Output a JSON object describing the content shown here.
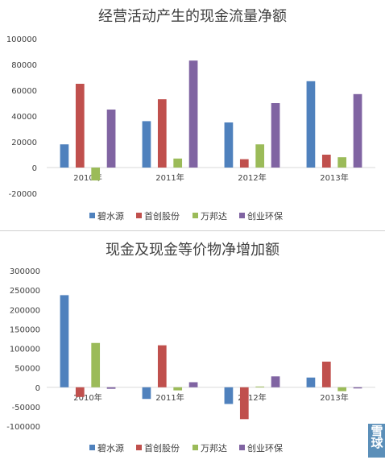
{
  "chart_data": [
    {
      "type": "bar",
      "title": "经营活动产生的现金流量净额",
      "categories": [
        "2010年",
        "2011年",
        "2012年",
        "2013年"
      ],
      "ylim": [
        -20000,
        100000
      ],
      "yticks": [
        -20000,
        0,
        20000,
        40000,
        60000,
        80000,
        100000
      ],
      "grid": false,
      "legend_position": "bottom",
      "series": [
        {
          "name": "碧水源",
          "color": "#4f81bd",
          "values": [
            18000,
            36000,
            35000,
            67000
          ]
        },
        {
          "name": "首创股份",
          "color": "#c0504d",
          "values": [
            65000,
            53000,
            6500,
            10000
          ]
        },
        {
          "name": "万邦达",
          "color": "#9bbb59",
          "values": [
            -10000,
            7000,
            18000,
            8000
          ]
        },
        {
          "name": "创业环保",
          "color": "#8064a2",
          "values": [
            45000,
            83000,
            50000,
            57000
          ]
        }
      ]
    },
    {
      "type": "bar",
      "title": "现金及现金等价物净增加额",
      "categories": [
        "2010年",
        "2011年",
        "2012年",
        "2013年"
      ],
      "ylim": [
        -100000,
        300000
      ],
      "yticks": [
        -100000,
        -50000,
        0,
        50000,
        100000,
        150000,
        200000,
        250000,
        300000
      ],
      "grid": false,
      "legend_position": "bottom",
      "series": [
        {
          "name": "碧水源",
          "color": "#4f81bd",
          "values": [
            237000,
            -30000,
            -43000,
            25000
          ]
        },
        {
          "name": "首创股份",
          "color": "#c0504d",
          "values": [
            -25000,
            108000,
            -82000,
            66000
          ]
        },
        {
          "name": "万邦达",
          "color": "#9bbb59",
          "values": [
            114000,
            -8000,
            2000,
            -10000
          ]
        },
        {
          "name": "创业环保",
          "color": "#8064a2",
          "values": [
            -4000,
            13000,
            28000,
            -3000
          ]
        }
      ]
    }
  ],
  "watermark": {
    "text": "雪球",
    "color": "#5b8fb9"
  }
}
